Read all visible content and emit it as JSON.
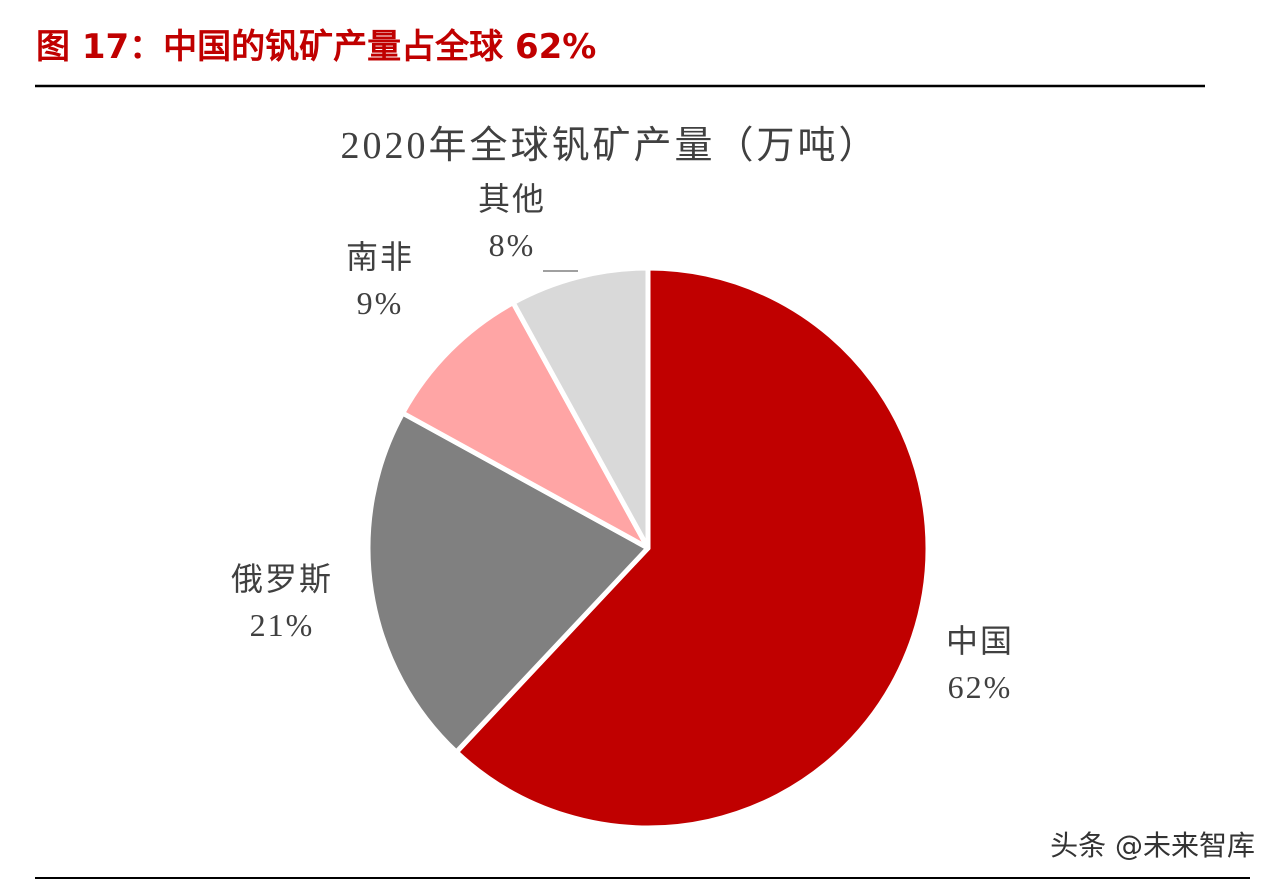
{
  "caption": "图 17：中国的钒矿产量占全球 62%",
  "watermark": "头条 @未来智库",
  "chart_data": {
    "type": "pie",
    "title": "2020年全球钒矿产量（万吨）",
    "categories": [
      "中国",
      "俄罗斯",
      "南非",
      "其他"
    ],
    "values": [
      62,
      21,
      9,
      8
    ],
    "value_labels": [
      "62%",
      "21%",
      "9%",
      "8%"
    ],
    "colors": [
      "#c00000",
      "#808080",
      "#ffa5a5",
      "#d9d9d9"
    ]
  }
}
